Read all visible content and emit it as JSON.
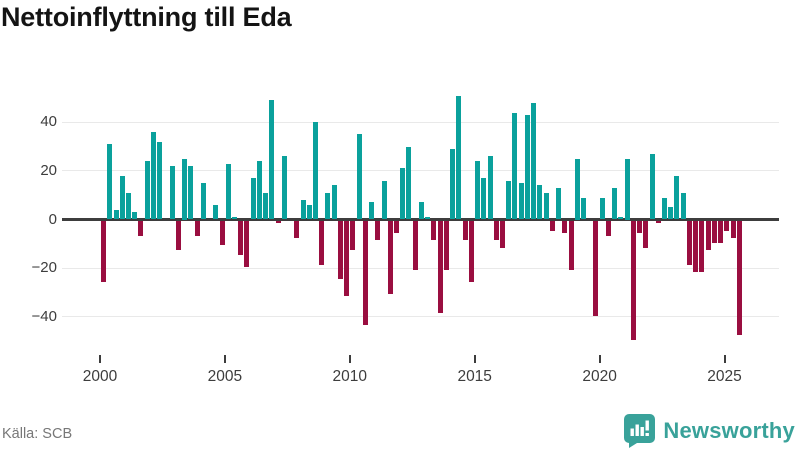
{
  "title": "Nettoinflyttning till Eda",
  "source": "Källa: SCB",
  "logo": {
    "text": "Newsworthy",
    "icon": "bar-chart-speech-bubble-icon",
    "badge_color": "#39a29a",
    "text_color": "#39a29a"
  },
  "colors": {
    "positive_bar": "#0aa19c",
    "negative_bar": "#9a0e40",
    "gridline": "#e9e9e9",
    "zero_line": "#3d3d3d",
    "axis_text": "#3d3d3d",
    "title_text": "#141414",
    "source_text": "#777777"
  },
  "chart_data": {
    "type": "bar",
    "title": "Nettoinflyttning till Eda",
    "xlabel": "",
    "ylabel": "",
    "x_unit": "quarter",
    "grid": true,
    "ylim": [
      -52,
      55
    ],
    "y_ticks": [
      40,
      20,
      0,
      -20,
      -40
    ],
    "y_tick_labels": [
      "40",
      "20",
      "0",
      "−20",
      "−40"
    ],
    "x_tick_labels": [
      "2000",
      "2005",
      "2010",
      "2015",
      "2020",
      "2025"
    ],
    "quarters": [
      "2000 Q1",
      "2000 Q2",
      "2000 Q3",
      "2000 Q4",
      "2001 Q1",
      "2001 Q2",
      "2001 Q3",
      "2001 Q4",
      "2002 Q1",
      "2002 Q2",
      "2002 Q3",
      "2002 Q4",
      "2003 Q1",
      "2003 Q2",
      "2003 Q3",
      "2003 Q4",
      "2004 Q1",
      "2004 Q2",
      "2004 Q3",
      "2004 Q4",
      "2005 Q1",
      "2005 Q2",
      "2005 Q3",
      "2005 Q4",
      "2006 Q1",
      "2006 Q2",
      "2006 Q3",
      "2006 Q4",
      "2007 Q1",
      "2007 Q2",
      "2007 Q3",
      "2007 Q4",
      "2008 Q1",
      "2008 Q2",
      "2008 Q3",
      "2008 Q4",
      "2009 Q1",
      "2009 Q2",
      "2009 Q3",
      "2009 Q4",
      "2010 Q1",
      "2010 Q2",
      "2010 Q3",
      "2010 Q4",
      "2011 Q1",
      "2011 Q2",
      "2011 Q3",
      "2011 Q4",
      "2012 Q1",
      "2012 Q2",
      "2012 Q3",
      "2012 Q4",
      "2013 Q1",
      "2013 Q2",
      "2013 Q3",
      "2013 Q4",
      "2014 Q1",
      "2014 Q2",
      "2014 Q3",
      "2014 Q4",
      "2015 Q1",
      "2015 Q2",
      "2015 Q3",
      "2015 Q4",
      "2016 Q1",
      "2016 Q2",
      "2016 Q3",
      "2016 Q4",
      "2017 Q1",
      "2017 Q2",
      "2017 Q3",
      "2017 Q4",
      "2018 Q1",
      "2018 Q2",
      "2018 Q3",
      "2018 Q4",
      "2019 Q1",
      "2019 Q2",
      "2019 Q3",
      "2019 Q4",
      "2020 Q1",
      "2020 Q2",
      "2020 Q3",
      "2020 Q4",
      "2021 Q1",
      "2021 Q2",
      "2021 Q3",
      "2021 Q4",
      "2022 Q1",
      "2022 Q2",
      "2022 Q3",
      "2022 Q4",
      "2023 Q1",
      "2023 Q2",
      "2023 Q3",
      "2023 Q4",
      "2024 Q1",
      "2024 Q2",
      "2024 Q3",
      "2024 Q4",
      "2025 Q1",
      "2025 Q2",
      "2025 Q3"
    ],
    "series": [
      {
        "name": "Nettoinflyttning till Eda",
        "values": [
          -25,
          31,
          4,
          18,
          11,
          3,
          -6,
          24,
          36,
          32,
          0,
          22,
          -12,
          25,
          22,
          -6,
          15,
          0,
          6,
          -10,
          23,
          1,
          -14,
          -19,
          17,
          24,
          11,
          49,
          -1,
          26,
          0,
          -7,
          8,
          6,
          40,
          -18,
          11,
          14,
          -24,
          -31,
          -12,
          35,
          -43,
          7,
          -8,
          16,
          -30,
          -5,
          21,
          30,
          -20,
          7,
          1,
          -8,
          -38,
          -20,
          29,
          51,
          -8,
          -25,
          24,
          17,
          26,
          -8,
          -11,
          16,
          44,
          15,
          43,
          48,
          14,
          11,
          -4,
          13,
          -5,
          -20,
          25,
          9,
          0,
          -39,
          9,
          -6,
          13,
          1,
          25,
          -49,
          -5,
          -11,
          27,
          -1,
          9,
          5,
          18,
          11,
          -18,
          -21,
          -21,
          -12,
          -9,
          -9,
          -4,
          -7,
          -47
        ]
      }
    ]
  }
}
